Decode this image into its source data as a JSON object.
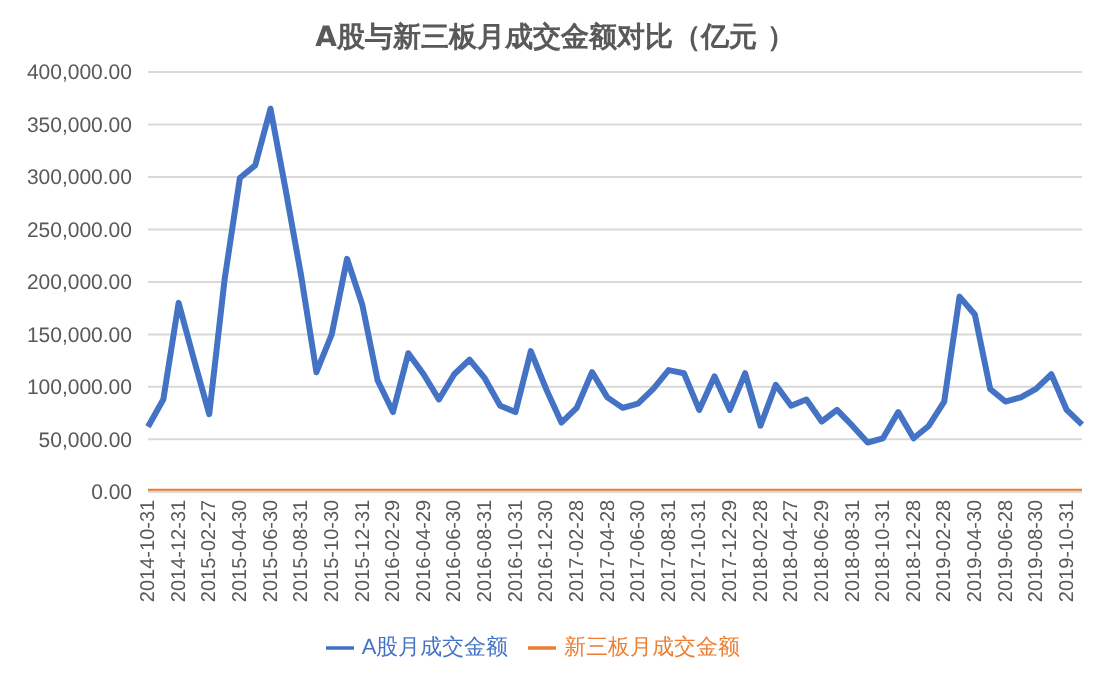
{
  "chart_data": {
    "type": "line",
    "title": "A股与新三板月成交金额对比（亿元 ）",
    "categories": [
      "2014-10-31",
      null,
      "2014-12-31",
      null,
      "2015-02-27",
      null,
      "2015-04-30",
      null,
      "2015-06-30",
      null,
      "2015-08-31",
      null,
      "2015-10-30",
      null,
      "2015-12-31",
      null,
      "2016-02-29",
      null,
      "2016-04-29",
      null,
      "2016-06-30",
      null,
      "2016-08-31",
      null,
      "2016-10-31",
      null,
      "2016-12-30",
      null,
      "2017-02-28",
      null,
      "2017-04-28",
      null,
      "2017-06-30",
      null,
      "2017-08-31",
      null,
      "2017-10-31",
      null,
      "2017-12-29",
      null,
      "2018-02-28",
      null,
      "2018-04-27",
      null,
      "2018-06-29",
      null,
      "2018-08-31",
      null,
      "2018-10-31",
      null,
      "2018-12-28",
      null,
      "2019-02-28",
      null,
      "2019-04-30",
      null,
      "2019-06-28",
      null,
      "2019-08-30",
      null,
      "2019-10-31",
      null
    ],
    "series": [
      {
        "name": "A股月成交金额",
        "color": "#4472c4",
        "values": [
          62000,
          88000,
          180000,
          126000,
          74000,
          202000,
          299000,
          311000,
          365000,
          287000,
          206000,
          114000,
          150000,
          222000,
          178000,
          106000,
          76000,
          132000,
          112000,
          88000,
          112000,
          126000,
          108000,
          82000,
          76000,
          134000,
          98000,
          66000,
          80000,
          114000,
          90000,
          80000,
          84000,
          98000,
          116000,
          113000,
          78000,
          110000,
          78000,
          113000,
          63000,
          102000,
          82000,
          88000,
          67000,
          78000,
          63000,
          47000,
          51000,
          76000,
          51000,
          63000,
          86000,
          186000,
          169000,
          98000,
          86000,
          90000,
          98000,
          112000,
          78000,
          64000
        ]
      },
      {
        "name": "新三板月成交金额",
        "color": "#ed7d31",
        "values": [
          0,
          0,
          0,
          0,
          0,
          0,
          0,
          0,
          0,
          0,
          0,
          0,
          0,
          0,
          0,
          0,
          0,
          0,
          0,
          0,
          0,
          0,
          0,
          0,
          0,
          0,
          0,
          0,
          0,
          0,
          0,
          0,
          0,
          0,
          0,
          0,
          0,
          0,
          0,
          0,
          0,
          0,
          0,
          0,
          0,
          0,
          0,
          0,
          0,
          0,
          0,
          0,
          0,
          0,
          0,
          0,
          0,
          0,
          0,
          0,
          0,
          0
        ]
      }
    ],
    "ylim": [
      0,
      400000
    ],
    "yticks": [
      {
        "value": 0,
        "label": "0.00"
      },
      {
        "value": 50000,
        "label": "50,000.00"
      },
      {
        "value": 100000,
        "label": "100,000.00"
      },
      {
        "value": 150000,
        "label": "150,000.00"
      },
      {
        "value": 200000,
        "label": "200,000.00"
      },
      {
        "value": 250000,
        "label": "250,000.00"
      },
      {
        "value": 300000,
        "label": "300,000.00"
      },
      {
        "value": 350000,
        "label": "350,000.00"
      },
      {
        "value": 400000,
        "label": "400,000.00"
      }
    ],
    "grid": "y",
    "legend": "bottom",
    "marker": "none",
    "line_style": "solid"
  }
}
